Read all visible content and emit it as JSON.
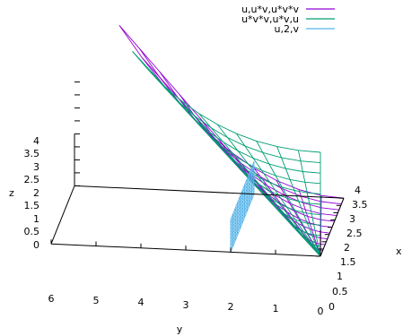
{
  "chart_data": {
    "type": "surface",
    "title": "",
    "axes": {
      "x": {
        "label": "x",
        "ticks": [
          "0",
          "0.5",
          "1",
          "1.5",
          "2",
          "2.5",
          "3",
          "3.5",
          "4"
        ]
      },
      "y": {
        "label": "y",
        "ticks": [
          "0",
          "1",
          "2",
          "3",
          "4",
          "5",
          "6"
        ]
      },
      "z": {
        "label": "z",
        "ticks": [
          "0",
          "0.5",
          "1",
          "1.5",
          "2",
          "2.5",
          "3",
          "3.5",
          "4"
        ]
      }
    },
    "legend_position": "top-right",
    "series": [
      {
        "name": "u,u*v,u*v*v",
        "color": "#9400d3",
        "x": "u",
        "y": "u*v",
        "z": "u*v*v"
      },
      {
        "name": "u*v*v,u*v,u",
        "color": "#009e73",
        "x": "u*v*v",
        "y": "u*v",
        "z": "u"
      },
      {
        "name": "u,2,v",
        "color": "#56b4e9",
        "x": "u",
        "y": "2",
        "z": "v"
      }
    ]
  }
}
